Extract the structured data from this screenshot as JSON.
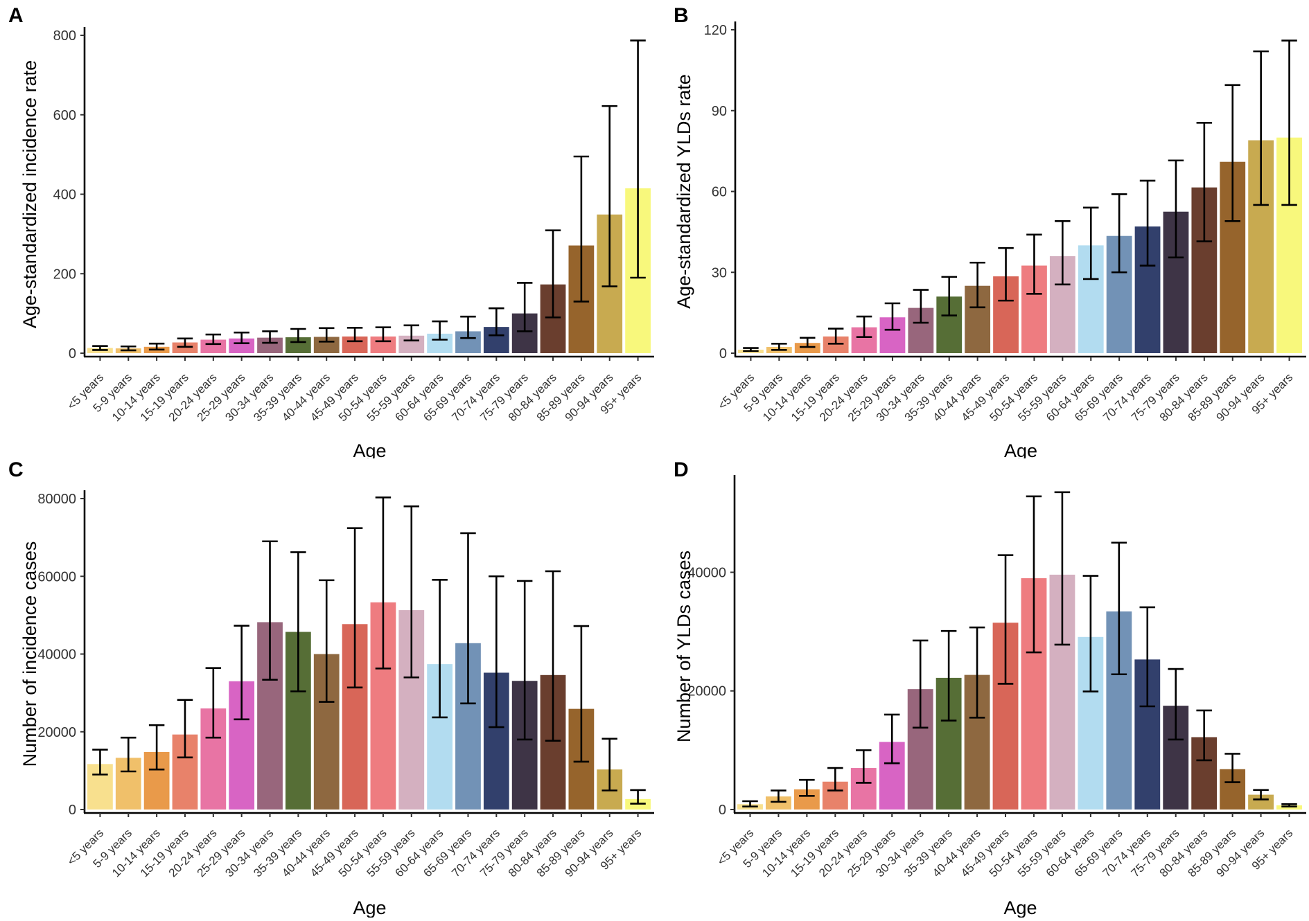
{
  "colors": [
    "#F8E08E",
    "#F0C06A",
    "#E99A4A",
    "#E8826A",
    "#E874A4",
    "#D864C4",
    "#98667C",
    "#566E36",
    "#8E6840",
    "#D86658",
    "#EE7C80",
    "#D4B0C0",
    "#B2DCF0",
    "#7292B6",
    "#32406C",
    "#3E3446",
    "#6A3E2E",
    "#96642C",
    "#C8AA50",
    "#F8F87C"
  ],
  "panels": [
    {
      "letter": "A",
      "chart_data": {
        "type": "bar",
        "categories": [
          "<5 years",
          "5-9 years",
          "10-14 years",
          "15-19 years",
          "20-24 years",
          "25-29 years",
          "30-34 years",
          "35-39 years",
          "40-44 years",
          "45-49 years",
          "50-54 years",
          "55-59 years",
          "60-64 years",
          "65-69 years",
          "70-74 years",
          "75-79 years",
          "80-84 years",
          "85-89 years",
          "90-94 years",
          "95+ years"
        ],
        "values": [
          13,
          12,
          16,
          27,
          34,
          37,
          39,
          40,
          41,
          42,
          42,
          44,
          49,
          55,
          66,
          100,
          173,
          271,
          349,
          415
        ],
        "lower": [
          8,
          7,
          9,
          16,
          23,
          25,
          26,
          28,
          29,
          30,
          30,
          32,
          34,
          38,
          45,
          55,
          90,
          130,
          168,
          190
        ],
        "upper": [
          18,
          17,
          24,
          37,
          47,
          52,
          55,
          61,
          63,
          64,
          65,
          70,
          80,
          92,
          113,
          177,
          309,
          495,
          622,
          787
        ],
        "xlabel": "Age",
        "ylabel": "Age-standardized incidence rate",
        "ylim": [
          0,
          800
        ],
        "yticks": [
          0,
          200,
          400,
          600,
          800
        ],
        "ytick_labels": [
          "0",
          "200",
          "400",
          "600",
          "800"
        ]
      }
    },
    {
      "letter": "B",
      "chart_data": {
        "type": "bar",
        "categories": [
          "<5 years",
          "5-9 years",
          "10-14 years",
          "15-19 years",
          "20-24 years",
          "25-29 years",
          "30-34 years",
          "35-39 years",
          "40-44 years",
          "45-49 years",
          "50-54 years",
          "55-59 years",
          "60-64 years",
          "65-69 years",
          "70-74 years",
          "75-79 years",
          "80-84 years",
          "85-89 years",
          "90-94 years",
          "95+ years"
        ],
        "values": [
          1.3,
          2.3,
          3.8,
          6.2,
          9.6,
          13.3,
          16.8,
          21,
          25,
          28.5,
          32.5,
          36,
          40,
          43.5,
          47,
          52.5,
          61.5,
          71,
          79,
          80
        ],
        "lower": [
          0.8,
          1.2,
          2.3,
          3.5,
          6.0,
          8.7,
          11.3,
          14,
          17,
          19.5,
          22,
          25.5,
          27.5,
          30,
          32.5,
          35.5,
          41.5,
          49,
          55,
          55
        ],
        "upper": [
          1.9,
          3.5,
          5.7,
          9.1,
          13.6,
          18.5,
          23.5,
          28.3,
          33.6,
          39,
          44,
          49,
          54,
          59,
          64,
          71.5,
          85.5,
          99.5,
          112,
          116
        ],
        "xlabel": "Age",
        "ylabel": "Age-standardized YLDs rate",
        "ylim": [
          0,
          120
        ],
        "yticks": [
          0,
          30,
          60,
          90,
          120
        ],
        "ytick_labels": [
          "0",
          "30",
          "60",
          "90",
          "120"
        ]
      }
    },
    {
      "letter": "C",
      "chart_data": {
        "type": "bar",
        "categories": [
          "<5 years",
          "5-9 years",
          "10-14 years",
          "15-19 years",
          "20-24 years",
          "25-29 years",
          "30-34 years",
          "35-39 years",
          "40-44 years",
          "45-49 years",
          "50-54 years",
          "55-59 years",
          "60-64 years",
          "65-69 years",
          "70-74 years",
          "75-79 years",
          "80-84 years",
          "85-89 years",
          "90-94 years",
          "95+ years"
        ],
        "values": [
          11700,
          13300,
          14800,
          19300,
          26000,
          33000,
          48200,
          45700,
          40000,
          47700,
          53300,
          51300,
          37400,
          42800,
          35200,
          33100,
          34600,
          25900,
          10300,
          2700
        ],
        "lower": [
          9000,
          9800,
          10300,
          13400,
          18500,
          23200,
          33400,
          30400,
          27700,
          31400,
          36300,
          34000,
          23700,
          27300,
          21200,
          18000,
          17700,
          12300,
          4900,
          1500
        ],
        "upper": [
          15400,
          18500,
          21700,
          28200,
          36400,
          47300,
          69000,
          66200,
          59000,
          72400,
          80300,
          78000,
          59100,
          71100,
          60000,
          58800,
          61300,
          47200,
          18200,
          5000
        ],
        "xlabel": "Age",
        "ylabel": "Number of incidence cases",
        "ylim": [
          0,
          80000
        ],
        "yticks": [
          0,
          20000,
          40000,
          60000,
          80000
        ],
        "ytick_labels": [
          "0",
          "20000",
          "40000",
          "60000",
          "80000"
        ]
      }
    },
    {
      "letter": "D",
      "chart_data": {
        "type": "bar",
        "categories": [
          "<5 years",
          "5-9 years",
          "10-14 years",
          "15-19 years",
          "20-24 years",
          "25-29 years",
          "30-34 years",
          "35-39 years",
          "40-44 years",
          "45-49 years",
          "50-54 years",
          "55-59 years",
          "60-64 years",
          "65-69 years",
          "70-74 years",
          "75-79 years",
          "80-84 years",
          "85-89 years",
          "90-94 years",
          "95+ years"
        ],
        "values": [
          900,
          2200,
          3400,
          4700,
          7000,
          11400,
          20300,
          22200,
          22700,
          31500,
          39000,
          39600,
          29100,
          33400,
          25300,
          17500,
          12200,
          6800,
          2500,
          700
        ],
        "lower": [
          500,
          1300,
          2300,
          3200,
          4500,
          7800,
          13800,
          15000,
          15500,
          21200,
          26500,
          27800,
          19900,
          22800,
          17400,
          11800,
          8300,
          4600,
          1700,
          500
        ],
        "upper": [
          1400,
          3200,
          5000,
          7000,
          10000,
          16000,
          28500,
          30100,
          30700,
          42900,
          52800,
          53500,
          39400,
          45000,
          34100,
          23700,
          16700,
          9400,
          3300,
          900
        ],
        "xlabel": "Age",
        "ylabel": "Number of YLDs cases",
        "ylim": [
          0,
          55000
        ],
        "yticks": [
          0,
          20000,
          40000
        ],
        "ytick_labels": [
          "0",
          "20000",
          "40000"
        ]
      }
    }
  ]
}
